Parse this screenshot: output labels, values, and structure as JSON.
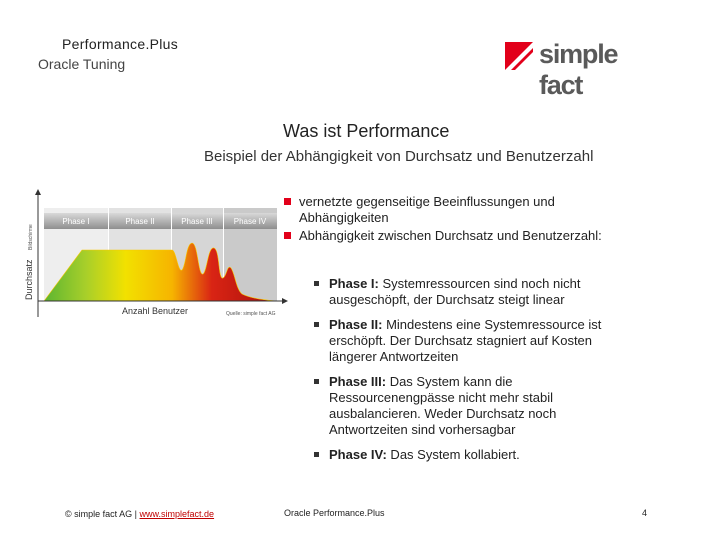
{
  "header": {
    "title": "Performance.Plus",
    "subtitle": "Oracle Tuning",
    "logo_text": "simple fact",
    "logo_color": "#e2001a"
  },
  "slide": {
    "title": "Was ist Performance",
    "subtitle": "Beispiel der Abhängigkeit von Durchsatz und Benutzerzahl"
  },
  "chart": {
    "phases": [
      "Phase I",
      "Phase II",
      "Phase III",
      "Phase IV"
    ],
    "y_label": "Durchsatz",
    "y_sublabel": "Bildschirme",
    "x_label": "Anzahl Benutzer",
    "source": "Quelle: simple fact AG"
  },
  "bullets": [
    {
      "line1": "vernetzte gegenseitige Beeinflussungen und",
      "line2": "Abhängigkeiten"
    },
    {
      "line1": "Abhängigkeit zwischen Durchsatz und Benutzerzahl:"
    }
  ],
  "sub_bullets": [
    {
      "label": "Phase I:",
      "lines": [
        " Systemressourcen sind noch nicht",
        "ausgeschöpft, der Durchsatz steigt linear"
      ]
    },
    {
      "label": "Phase II:",
      "lines": [
        " Mindestens eine Systemressource ist",
        "erschöpft. Der Durchsatz stagniert auf Kosten",
        "längerer Antwortzeiten"
      ]
    },
    {
      "label": "Phase III:",
      "lines": [
        " Das System kann die",
        "Ressourcenengpässe nicht mehr stabil",
        "ausbalancieren. Weder Durchsatz noch",
        "Antwortzeiten sind vorhersagbar"
      ]
    },
    {
      "label": "Phase IV:",
      "lines": [
        " Das System kollabiert."
      ]
    }
  ],
  "footer": {
    "copyright": "© simple fact AG",
    "separator": "|",
    "link": "www.simplefact.de",
    "center": "Oracle Performance.Plus",
    "page": "4"
  }
}
